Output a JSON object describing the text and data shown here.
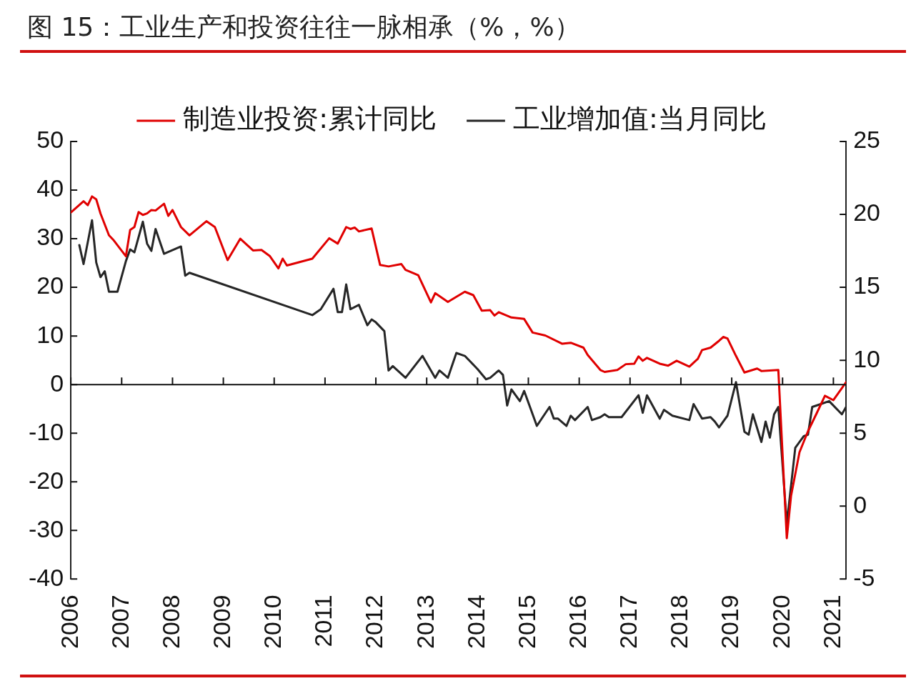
{
  "chart_data": {
    "type": "line",
    "title": "图 15：工业生产和投资往往一脉相承（%，%）",
    "xlim": [
      "2006-01",
      "2021-04"
    ],
    "xticks": [
      "2006",
      "2007",
      "2008",
      "2009",
      "2010",
      "2011",
      "2012",
      "2013",
      "2014",
      "2015",
      "2016",
      "2017",
      "2018",
      "2019",
      "2020",
      "2021"
    ],
    "ylim": [
      -40,
      50
    ],
    "yticks": [
      -40,
      -30,
      -20,
      -10,
      0,
      10,
      20,
      30,
      40,
      50
    ],
    "y2lim": [
      -5,
      25
    ],
    "y2ticks": [
      -5,
      0,
      5,
      10,
      15,
      20,
      25
    ],
    "ref_lines": [
      {
        "axis": "y",
        "value": 0,
        "color": "#111111",
        "line_style": "solid"
      }
    ],
    "legend": "top",
    "grid": false,
    "marker": "none",
    "line_style": "solid",
    "series": [
      {
        "name": "制造业投资:累计同比",
        "color": "#e00000",
        "x": [
          "2006-01",
          "2006-04",
          "2006-05",
          "2006-06",
          "2006-07",
          "2006-08",
          "2006-10",
          "2006-11",
          "2007-02",
          "2007-03",
          "2007-04",
          "2007-05",
          "2007-06",
          "2007-07",
          "2007-08",
          "2007-09",
          "2007-11",
          "2007-12",
          "2008-01",
          "2008-03",
          "2008-05",
          "2008-09",
          "2008-11",
          "2009-02",
          "2009-05",
          "2009-08",
          "2009-10",
          "2009-12",
          "2010-02",
          "2010-03",
          "2010-04",
          "2010-07",
          "2010-10",
          "2011-02",
          "2011-04",
          "2011-06",
          "2011-07",
          "2011-08",
          "2011-09",
          "2011-12",
          "2012-02",
          "2012-04",
          "2012-07",
          "2012-08",
          "2012-11",
          "2013-02",
          "2013-03",
          "2013-06",
          "2013-10",
          "2013-12",
          "2014-02",
          "2014-04",
          "2014-05",
          "2014-06",
          "2014-09",
          "2014-12",
          "2015-02",
          "2015-05",
          "2015-09",
          "2015-11",
          "2016-02",
          "2016-03",
          "2016-06",
          "2016-07",
          "2016-10",
          "2016-12",
          "2017-02",
          "2017-03",
          "2017-04",
          "2017-05",
          "2017-08",
          "2017-10",
          "2017-12",
          "2018-03",
          "2018-05",
          "2018-06",
          "2018-08",
          "2018-10",
          "2018-11",
          "2018-12",
          "2019-02",
          "2019-04",
          "2019-07",
          "2019-08",
          "2019-12",
          "2020-02",
          "2020-03",
          "2020-05",
          "2020-07",
          "2020-09",
          "2020-11",
          "2021-01",
          "2021-04"
        ],
        "values": [
          35.4,
          37.7,
          36.9,
          38.7,
          38.1,
          35.2,
          30.7,
          29.8,
          26.4,
          31.8,
          32.4,
          35.5,
          34.9,
          35.2,
          35.9,
          35.8,
          37.2,
          34.7,
          35.9,
          32.4,
          30.7,
          33.6,
          32.4,
          25.6,
          30.0,
          27.6,
          27.7,
          26.4,
          23.9,
          25.9,
          24.5,
          25.2,
          25.9,
          30.1,
          29.0,
          32.4,
          32.0,
          32.3,
          31.5,
          32.1,
          24.6,
          24.3,
          24.8,
          23.6,
          22.5,
          16.9,
          18.8,
          17.0,
          19.1,
          18.4,
          15.2,
          15.3,
          14.2,
          14.9,
          13.8,
          13.5,
          10.7,
          10.1,
          8.4,
          8.6,
          7.6,
          6.1,
          3.0,
          2.6,
          3.0,
          4.2,
          4.3,
          5.8,
          4.9,
          5.5,
          4.3,
          3.9,
          4.9,
          3.7,
          5.3,
          7.1,
          7.6,
          9.0,
          9.8,
          9.5,
          5.9,
          2.5,
          3.3,
          2.8,
          3.0,
          -31.6,
          -22.9,
          -13.9,
          -9.6,
          -6.0,
          -2.3,
          -3.2,
          0.5
        ]
      },
      {
        "name": "工业增加值:当月同比",
        "color": "#262626",
        "axis": "y2",
        "x": [
          "2006-03",
          "2006-04",
          "2006-06",
          "2006-07",
          "2006-08",
          "2006-09",
          "2006-10",
          "2006-12",
          "2007-02",
          "2007-03",
          "2007-04",
          "2007-06",
          "2007-07",
          "2007-08",
          "2007-09",
          "2007-11",
          "2008-03",
          "2008-04",
          "2008-05",
          "2010-10",
          "2010-12",
          "2011-03",
          "2011-04",
          "2011-05",
          "2011-06",
          "2011-07",
          "2011-09",
          "2011-11",
          "2011-12",
          "2012-01",
          "2012-03",
          "2012-04",
          "2012-05",
          "2012-08",
          "2012-12",
          "2013-03",
          "2013-04",
          "2013-06",
          "2013-08",
          "2013-10",
          "2014-01",
          "2014-03",
          "2014-04",
          "2014-06",
          "2014-07",
          "2014-08",
          "2014-09",
          "2014-11",
          "2014-12",
          "2015-03",
          "2015-06",
          "2015-07",
          "2015-08",
          "2015-10",
          "2015-11",
          "2015-12",
          "2016-03",
          "2016-04",
          "2016-06",
          "2016-07",
          "2016-08",
          "2016-11",
          "2017-03",
          "2017-04",
          "2017-05",
          "2017-08",
          "2017-09",
          "2017-11",
          "2018-03",
          "2018-04",
          "2018-06",
          "2018-08",
          "2018-09",
          "2018-10",
          "2018-12",
          "2019-02",
          "2019-04",
          "2019-05",
          "2019-06",
          "2019-08",
          "2019-09",
          "2019-10",
          "2019-11",
          "2019-12",
          "2020-02",
          "2020-04",
          "2020-06",
          "2020-07",
          "2020-08",
          "2020-09",
          "2020-12",
          "2021-03",
          "2021-04"
        ],
        "values": [
          17.9,
          16.6,
          19.6,
          16.7,
          15.7,
          16.1,
          14.7,
          14.7,
          16.8,
          17.6,
          17.4,
          19.5,
          18.0,
          17.5,
          19.0,
          17.3,
          17.8,
          15.8,
          16.0,
          13.1,
          13.5,
          14.9,
          13.3,
          13.3,
          15.2,
          13.5,
          13.8,
          12.4,
          12.8,
          12.6,
          12.0,
          9.3,
          9.6,
          8.8,
          10.3,
          8.8,
          9.3,
          8.8,
          10.5,
          10.3,
          9.4,
          8.7,
          8.8,
          9.3,
          9.0,
          6.9,
          8.0,
          7.2,
          7.9,
          5.5,
          6.8,
          6.0,
          6.0,
          5.5,
          6.2,
          5.9,
          6.8,
          5.9,
          6.1,
          6.3,
          6.1,
          6.1,
          7.6,
          6.4,
          7.6,
          6.0,
          6.6,
          6.2,
          5.9,
          7.0,
          6.0,
          6.1,
          5.8,
          5.4,
          6.2,
          8.5,
          5.1,
          4.9,
          6.3,
          4.4,
          5.8,
          4.7,
          6.3,
          6.8,
          -1.2,
          4.0,
          4.8,
          4.9,
          6.8,
          6.9,
          7.2,
          6.3,
          6.8
        ]
      }
    ]
  }
}
